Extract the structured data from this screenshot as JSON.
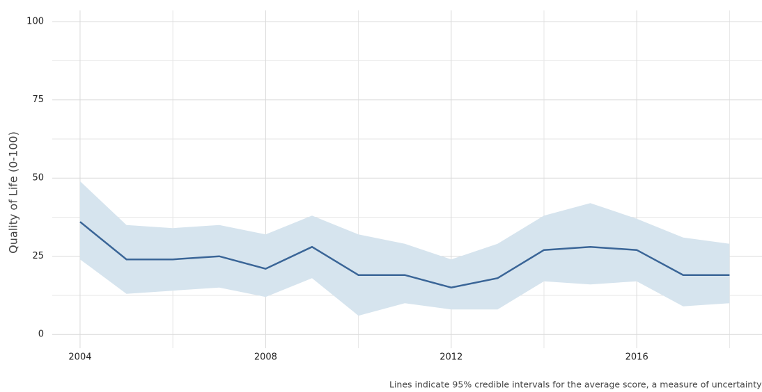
{
  "chart_data": {
    "type": "line",
    "y_label": "Quality of Life (0-100)",
    "caption": "Lines indicate 95% credible intervals for the average score, a measure of uncertainty",
    "x": [
      2004,
      2005,
      2006,
      2007,
      2008,
      2009,
      2010,
      2011,
      2012,
      2013,
      2014,
      2015,
      2016,
      2017,
      2018
    ],
    "values": [
      36,
      24,
      24,
      25,
      21,
      28,
      19,
      19,
      15,
      18,
      27,
      28,
      27,
      19,
      19
    ],
    "upper": [
      49,
      35,
      34,
      35,
      32,
      38,
      32,
      29,
      24,
      29,
      38,
      42,
      37,
      31,
      29
    ],
    "lower": [
      24,
      13,
      14,
      15,
      12,
      18,
      6,
      10,
      8,
      8,
      17,
      16,
      17,
      9,
      10
    ],
    "color": "#3a6597",
    "band_color": "#d6e4ee",
    "xlim": [
      2003.4,
      2018.7
    ],
    "ylim": [
      -4.4,
      103.6
    ],
    "xticks": [
      2004,
      2008,
      2012,
      2016
    ],
    "yticks": [
      0,
      25,
      50,
      75,
      100
    ],
    "minor_xticks": [
      2006,
      2010,
      2014,
      2018
    ],
    "minor_yticks": [
      12.5,
      37.5,
      62.5,
      87.5
    ],
    "grid": true
  }
}
